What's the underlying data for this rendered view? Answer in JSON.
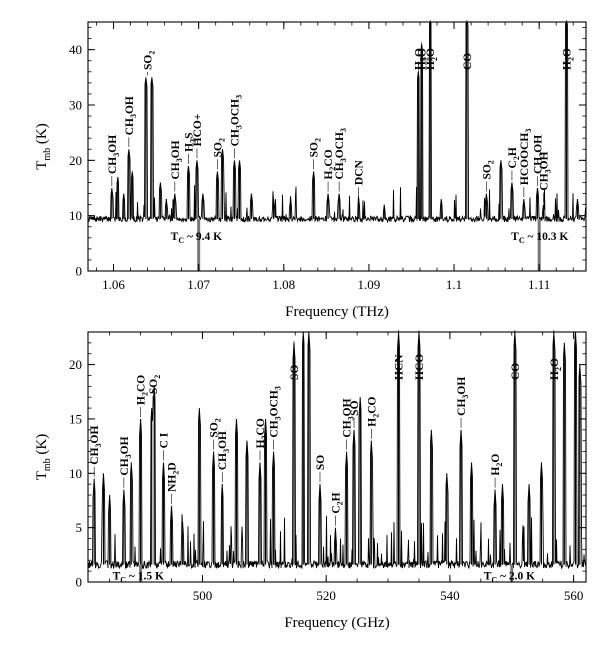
{
  "chart_data": [
    {
      "type": "line",
      "title": "",
      "xlabel": "Frequency (THz)",
      "ylabel": "T_mb (K)",
      "ylabel_main": "T",
      "ylabel_sub": "mb",
      "ylabel_unit": " (K)",
      "xlim": [
        1.057,
        1.1155
      ],
      "ylim": [
        0,
        45
      ],
      "x_ticks": [
        1.06,
        1.07,
        1.08,
        1.09,
        1.1,
        1.11
      ],
      "x_tick_labels": [
        "1.06",
        "1.07",
        "1.08",
        "1.09",
        "1.1",
        "1.11"
      ],
      "y_ticks": [
        0,
        10,
        20,
        30,
        40
      ],
      "y_tick_labels": [
        "0",
        "10",
        "20",
        "30",
        "40"
      ],
      "baseline": 9.4,
      "series": [
        {
          "peaks": [
            [
              1.0598,
              15
            ],
            [
              1.0605,
              17
            ],
            [
              1.0612,
              14
            ],
            [
              1.0618,
              22
            ],
            [
              1.0622,
              18
            ],
            [
              1.0638,
              35
            ],
            [
              1.0645,
              35
            ],
            [
              1.0655,
              16
            ],
            [
              1.0662,
              13
            ],
            [
              1.0672,
              14
            ],
            [
              1.0688,
              19
            ],
            [
              1.0698,
              20
            ],
            [
              1.0705,
              14
            ],
            [
              1.0722,
              18
            ],
            [
              1.0728,
              22
            ],
            [
              1.0742,
              20
            ],
            [
              1.0748,
              20
            ],
            [
              1.0762,
              14
            ],
            [
              1.0788,
              13
            ],
            [
              1.0808,
              13
            ],
            [
              1.0835,
              18
            ],
            [
              1.0852,
              14
            ],
            [
              1.0865,
              14
            ],
            [
              1.0888,
              13
            ],
            [
              1.0918,
              12
            ],
            [
              1.0958,
              36
            ],
            [
              1.0962,
              41
            ],
            [
              1.0972,
              46
            ],
            [
              1.0985,
              13
            ],
            [
              1.1015,
              46
            ],
            [
              1.1038,
              14
            ],
            [
              1.1055,
              20
            ],
            [
              1.1068,
              16
            ],
            [
              1.1082,
              13
            ],
            [
              1.1098,
              15
            ],
            [
              1.1105,
              12
            ],
            [
              1.1132,
              46
            ],
            [
              1.1145,
              13
            ]
          ]
        }
      ],
      "tc_markers": [
        {
          "x": 1.07,
          "label": "T",
          "sub": "C",
          "rest": " ~ 9.4 K"
        },
        {
          "x": 1.11,
          "label": "T",
          "sub": "C",
          "rest": " ~ 10.3 K"
        }
      ],
      "annotations": [
        {
          "main": "CH",
          "sub": "3",
          "rest": "OH",
          "x": 1.0598,
          "peak": 15
        },
        {
          "main": "CH",
          "sub": "3",
          "rest": "OH",
          "x": 1.0618,
          "peak": 22
        },
        {
          "main": "SO",
          "sub": "2",
          "rest": "",
          "x": 1.064,
          "peak": 35
        },
        {
          "main": "CH",
          "sub": "3",
          "rest": "OH",
          "x": 1.0672,
          "peak": 14
        },
        {
          "main": "H",
          "sub": "2",
          "rest": "S",
          "x": 1.0688,
          "peak": 19
        },
        {
          "main": "HCO+",
          "sub": "",
          "rest": "",
          "x": 1.0698,
          "peak": 20
        },
        {
          "main": "SO",
          "sub": "2",
          "rest": "",
          "x": 1.0722,
          "peak": 18
        },
        {
          "main": "CH",
          "sub": "3",
          "rest": "OCH",
          "sub2": "3",
          "x": 1.0742,
          "peak": 20
        },
        {
          "main": "SO",
          "sub": "2",
          "rest": "",
          "x": 1.0835,
          "peak": 18
        },
        {
          "main": "H",
          "sub": "2",
          "rest": "CO",
          "x": 1.0852,
          "peak": 14
        },
        {
          "main": "CH",
          "sub": "3",
          "rest": "OCH",
          "sub2": "3",
          "x": 1.0865,
          "peak": 14
        },
        {
          "main": "DCN",
          "sub": "",
          "rest": "",
          "x": 1.0888,
          "peak": 13
        },
        {
          "main": "H",
          "sub": "2",
          "rest": "O",
          "x": 1.0958,
          "peak": 36
        },
        {
          "main": "H",
          "sub": "2",
          "rest": "O",
          "x": 1.0962,
          "peak": 41
        },
        {
          "main": "H",
          "sub": "2",
          "rest": "O",
          "x": 1.0972,
          "peak": 46
        },
        {
          "main": "CO",
          "sub": "",
          "rest": "",
          "x": 1.1015,
          "peak": 46
        },
        {
          "main": "SO",
          "sub": "2",
          "rest": "",
          "x": 1.1038,
          "peak": 14
        },
        {
          "main": "C",
          "sub": "2",
          "rest": "H",
          "x": 1.1068,
          "peak": 16
        },
        {
          "main": "HCOOCH",
          "sub": "3",
          "rest": "",
          "x": 1.1082,
          "peak": 13
        },
        {
          "main": "CH",
          "sub": "3",
          "rest": "OH",
          "x": 1.1098,
          "peak": 15
        },
        {
          "main": "CH",
          "sub": "3",
          "rest": "OH",
          "x": 1.1105,
          "peak": 12
        },
        {
          "main": "H",
          "sub": "2",
          "rest": "O",
          "x": 1.1132,
          "peak": 46
        }
      ]
    },
    {
      "type": "line",
      "title": "",
      "xlabel": "Frequency (GHz)",
      "ylabel": "T_mb (K)",
      "ylabel_main": "T",
      "ylabel_sub": "mb",
      "ylabel_unit": " (K)",
      "xlim": [
        481.5,
        562
      ],
      "ylim": [
        0,
        23
      ],
      "x_ticks": [
        500,
        520,
        540,
        560
      ],
      "x_tick_labels": [
        "500",
        "520",
        "540",
        "560"
      ],
      "y_ticks": [
        0,
        5,
        10,
        15,
        20
      ],
      "y_tick_labels": [
        "0",
        "5",
        "10",
        "15",
        "20"
      ],
      "baseline": 1.6,
      "series": [
        {
          "peaks": [
            [
              482.5,
              9.5
            ],
            [
              484.0,
              10
            ],
            [
              485.0,
              8
            ],
            [
              487.3,
              8.5
            ],
            [
              488.5,
              11
            ],
            [
              490.0,
              15
            ],
            [
              491.8,
              16
            ],
            [
              492.2,
              18
            ],
            [
              493.7,
              11
            ],
            [
              495.0,
              7
            ],
            [
              496.8,
              5.5
            ],
            [
              499.5,
              16
            ],
            [
              501.8,
              12
            ],
            [
              503.2,
              9
            ],
            [
              505.5,
              15
            ],
            [
              507.2,
              13
            ],
            [
              509.3,
              11
            ],
            [
              510.2,
              15
            ],
            [
              511.5,
              12
            ],
            [
              514.8,
              22
            ],
            [
              516.3,
              23
            ],
            [
              517.2,
              23
            ],
            [
              519.0,
              9
            ],
            [
              521.5,
              5
            ],
            [
              523.3,
              12
            ],
            [
              524.5,
              14
            ],
            [
              525.5,
              17
            ],
            [
              527.3,
              13
            ],
            [
              531.7,
              23
            ],
            [
              535.0,
              23
            ],
            [
              537.0,
              14
            ],
            [
              539.5,
              10
            ],
            [
              541.8,
              14
            ],
            [
              543.5,
              11
            ],
            [
              547.3,
              8.5
            ],
            [
              548.5,
              9
            ],
            [
              550.5,
              23
            ],
            [
              552.8,
              9
            ],
            [
              554.8,
              11
            ],
            [
              556.8,
              23
            ],
            [
              558.5,
              22
            ],
            [
              560.3,
              23
            ],
            [
              561.0,
              20
            ]
          ]
        }
      ],
      "tc_markers": [
        {
          "x": 490.0,
          "label": "T",
          "sub": "C",
          "rest": " ~ 1.5 K"
        },
        {
          "x": 550.0,
          "label": "T",
          "sub": "C",
          "rest": " ~ 2.0 K"
        }
      ],
      "annotations": [
        {
          "main": "CH",
          "sub": "3",
          "rest": "OH",
          "x": 482.5,
          "peak": 9.5
        },
        {
          "main": "CH",
          "sub": "3",
          "rest": "OH",
          "x": 487.3,
          "peak": 8.5
        },
        {
          "main": "H",
          "sub": "2",
          "rest": "CO",
          "x": 490.0,
          "peak": 15
        },
        {
          "main": "SO",
          "sub": "2",
          "rest": "",
          "x": 492.0,
          "peak": 16
        },
        {
          "main": "C I",
          "sub": "",
          "rest": "",
          "x": 493.7,
          "peak": 11
        },
        {
          "main": "NH",
          "sub": "2",
          "rest": "D",
          "x": 495.0,
          "peak": 7
        },
        {
          "main": "SO",
          "sub": "2",
          "rest": "",
          "x": 501.8,
          "peak": 12
        },
        {
          "main": "CH",
          "sub": "3",
          "rest": "OH",
          "x": 503.2,
          "peak": 9
        },
        {
          "main": "H",
          "sub": "2",
          "rest": "CO",
          "x": 509.3,
          "peak": 11
        },
        {
          "main": "CH",
          "sub": "3",
          "rest": "OCH",
          "sub2": "3",
          "x": 511.5,
          "peak": 12
        },
        {
          "main": "SO",
          "sub": "",
          "rest": "",
          "x": 514.8,
          "peak": 22
        },
        {
          "main": "SO",
          "sub": "",
          "rest": "",
          "x": 519.0,
          "peak": 9
        },
        {
          "main": "C",
          "sub": "2",
          "rest": "H",
          "x": 521.5,
          "peak": 5
        },
        {
          "main": "CH",
          "sub": "3",
          "rest": "OH",
          "x": 523.3,
          "peak": 12
        },
        {
          "main": "SO",
          "sub": "",
          "rest": "",
          "x": 524.5,
          "peak": 14
        },
        {
          "main": "H",
          "sub": "2",
          "rest": "CO",
          "x": 527.3,
          "peak": 13
        },
        {
          "main": "HCN",
          "sub": "",
          "rest": "",
          "x": 531.7,
          "peak": 23
        },
        {
          "main": "HCO",
          "sub": "",
          "rest": "",
          "x": 535.0,
          "peak": 23
        },
        {
          "main": "CH",
          "sub": "3",
          "rest": "OH",
          "x": 541.8,
          "peak": 14
        },
        {
          "main": "H",
          "sub": "2",
          "rest": "O",
          "x": 547.3,
          "peak": 8.5
        },
        {
          "main": "CO",
          "sub": "",
          "rest": "",
          "x": 550.5,
          "peak": 23
        },
        {
          "main": "H",
          "sub": "2",
          "rest": "O",
          "x": 556.8,
          "peak": 23
        }
      ]
    }
  ]
}
